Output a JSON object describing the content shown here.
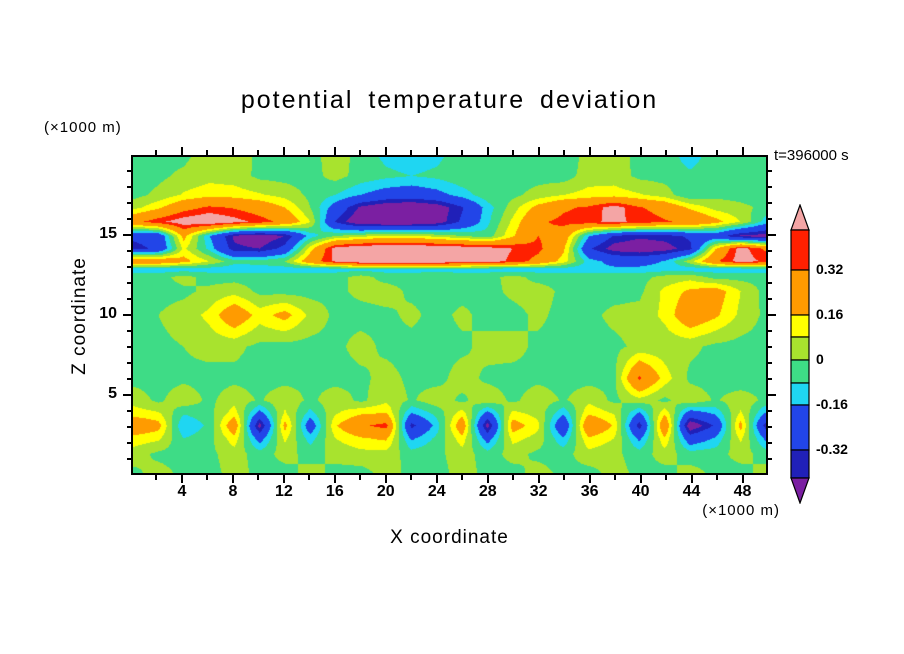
{
  "title": "potential temperature deviation",
  "time_label": "t=396000 s",
  "axis": {
    "x_label": "X coordinate",
    "z_label": "Z coordinate",
    "x_unit": "(×1000 m)",
    "z_unit": "(×1000 m)",
    "x_ticks": [
      4,
      8,
      12,
      16,
      20,
      24,
      28,
      32,
      36,
      40,
      44,
      48
    ],
    "z_ticks": [
      5,
      10,
      15
    ]
  },
  "colorbar": {
    "arrow_top_color": "#f4a5a5",
    "arrow_bottom_color": "#7b1fa2",
    "labels": [
      "0.32",
      "0.16",
      "0",
      "-0.16",
      "-0.32"
    ],
    "segments": [
      {
        "color": "#ff2000",
        "label": "0.32"
      },
      {
        "color": "#ff9b00",
        "label": "0.16"
      },
      {
        "color": "#ffff00"
      },
      {
        "color": "#a8e32e",
        "label": "0"
      },
      {
        "color": "#3edc86"
      },
      {
        "color": "#1fd6f2",
        "label": "-0.16"
      },
      {
        "color": "#2245e8",
        "label": "-0.32"
      },
      {
        "color": "#2020b8"
      }
    ]
  },
  "chart_data": {
    "type": "heatmap",
    "style": "filled-contour",
    "title": "potential temperature deviation",
    "xlabel": "X coordinate (×1000 m)",
    "ylabel": "Z coordinate (×1000 m)",
    "time_annotation": "t=396000 s",
    "x_range": [
      0,
      50
    ],
    "z_range": [
      0,
      20
    ],
    "x_ticks": [
      4,
      8,
      12,
      16,
      20,
      24,
      28,
      32,
      36,
      40,
      44,
      48
    ],
    "z_ticks": [
      5,
      10,
      15
    ],
    "colorbar_tick_labels": [
      "0.32",
      "0.16",
      "0",
      "-0.16",
      "-0.32"
    ],
    "levels": [
      -0.4,
      -0.32,
      -0.16,
      -0.08,
      0,
      0.08,
      0.16,
      0.32,
      0.4
    ],
    "colors": [
      "#7b1fa2",
      "#2020b8",
      "#2245e8",
      "#1fd6f2",
      "#3edc86",
      "#a8e32e",
      "#ffff00",
      "#ff9b00",
      "#ff2000",
      "#f4a5a5"
    ],
    "xs": [
      0,
      2,
      4,
      6,
      8,
      10,
      12,
      14,
      16,
      18,
      20,
      22,
      24,
      26,
      28,
      30,
      32,
      34,
      36,
      38,
      40,
      42,
      44,
      46,
      48,
      50
    ],
    "zs": [
      20,
      18.8,
      17.6,
      16.8,
      15.9,
      15.0,
      14.2,
      13.4,
      12.9,
      12.4,
      11.5,
      10,
      8,
      6,
      4.6,
      3.8,
      3.0,
      2.2,
      1.2,
      0
    ],
    "values": [
      [
        -0.03,
        -0.03,
        -0.02,
        0.05,
        0.05,
        -0.02,
        -0.03,
        -0.03,
        0.04,
        -0.03,
        -0.1,
        -0.13,
        -0.1,
        -0.03,
        -0.03,
        -0.03,
        -0.03,
        -0.08,
        0.05,
        0.05,
        -0.03,
        -0.03,
        -0.12,
        -0.03,
        -0.03,
        -0.03
      ],
      [
        -0.03,
        -0.02,
        0.02,
        0.05,
        0.04,
        -0.02,
        -0.03,
        -0.03,
        0.03,
        -0.03,
        -0.06,
        -0.08,
        -0.06,
        -0.02,
        -0.03,
        -0.03,
        -0.03,
        -0.04,
        0.04,
        0.04,
        -0.02,
        -0.03,
        -0.06,
        -0.03,
        -0.03,
        -0.03
      ],
      [
        -0.03,
        0.02,
        0.09,
        0.13,
        0.12,
        0.09,
        0.05,
        -0.02,
        -0.08,
        -0.16,
        -0.22,
        -0.24,
        -0.2,
        -0.12,
        -0.03,
        -0.02,
        0.03,
        0.08,
        0.11,
        0.12,
        0.09,
        0.04,
        -0.07,
        -0.02,
        -0.03,
        -0.03
      ],
      [
        0.05,
        0.14,
        0.27,
        0.34,
        0.31,
        0.25,
        0.16,
        0.0,
        -0.22,
        -0.42,
        -0.5,
        -0.52,
        -0.47,
        -0.33,
        -0.12,
        0.04,
        0.2,
        0.3,
        0.34,
        0.45,
        0.33,
        0.27,
        0.14,
        0.05,
        0.02,
        -0.02
      ],
      [
        0.28,
        0.38,
        0.46,
        0.5,
        0.44,
        0.37,
        0.28,
        0.08,
        -0.33,
        -0.5,
        -0.52,
        -0.52,
        -0.46,
        -0.3,
        -0.1,
        0.1,
        0.3,
        0.35,
        0.38,
        0.42,
        0.38,
        0.33,
        0.3,
        0.2,
        0.08,
        -0.12
      ],
      [
        -0.3,
        -0.28,
        0.2,
        -0.15,
        -0.42,
        -0.48,
        -0.4,
        -0.12,
        0.0,
        0.05,
        0.1,
        0.1,
        0.05,
        0.0,
        -0.05,
        0.15,
        0.32,
        0.25,
        -0.15,
        -0.33,
        -0.38,
        -0.36,
        -0.3,
        -0.25,
        -0.42,
        -0.45
      ],
      [
        -0.35,
        -0.3,
        0.1,
        -0.1,
        -0.38,
        -0.4,
        -0.28,
        0.12,
        0.45,
        0.5,
        0.52,
        0.52,
        0.5,
        0.48,
        0.45,
        0.4,
        0.35,
        0.18,
        -0.3,
        -0.45,
        -0.48,
        -0.45,
        -0.35,
        0.15,
        0.45,
        0.3
      ],
      [
        0.3,
        0.28,
        0.2,
        0.08,
        -0.05,
        -0.05,
        0.0,
        0.25,
        0.42,
        0.5,
        0.5,
        0.5,
        0.5,
        0.48,
        0.45,
        0.38,
        0.28,
        0.12,
        -0.12,
        -0.2,
        -0.22,
        -0.15,
        0.05,
        0.3,
        0.45,
        0.38
      ],
      [
        -0.12,
        -0.13,
        -0.12,
        -0.12,
        -0.13,
        -0.12,
        -0.12,
        -0.13,
        -0.12,
        -0.11,
        -0.12,
        -0.12,
        -0.11,
        -0.12,
        -0.12,
        -0.13,
        -0.12,
        -0.12,
        -0.13,
        -0.14,
        -0.13,
        -0.12,
        -0.13,
        -0.12,
        -0.13,
        -0.12
      ],
      [
        -0.03,
        -0.03,
        0.03,
        -0.03,
        -0.03,
        -0.03,
        -0.03,
        -0.03,
        -0.03,
        0.03,
        -0.03,
        -0.03,
        -0.03,
        -0.03,
        -0.03,
        0.03,
        -0.03,
        -0.03,
        -0.03,
        -0.03,
        -0.03,
        0.03,
        0.05,
        -0.03,
        -0.03,
        -0.03
      ],
      [
        -0.03,
        -0.03,
        -0.02,
        0.02,
        0.05,
        -0.02,
        -0.03,
        -0.03,
        -0.02,
        0.02,
        0.04,
        -0.02,
        -0.03,
        -0.03,
        -0.03,
        0.02,
        0.04,
        -0.02,
        -0.03,
        -0.03,
        -0.02,
        0.1,
        0.18,
        0.22,
        0.08,
        -0.03
      ],
      [
        -0.02,
        0.0,
        0.04,
        0.1,
        0.26,
        0.12,
        0.2,
        0.06,
        -0.02,
        -0.03,
        -0.02,
        0.02,
        -0.03,
        0.02,
        -0.03,
        -0.03,
        0.02,
        -0.03,
        -0.02,
        0.02,
        0.03,
        0.1,
        0.26,
        0.18,
        0.06,
        -0.02
      ],
      [
        -0.03,
        -0.02,
        0.0,
        0.03,
        0.02,
        -0.02,
        -0.03,
        -0.03,
        -0.02,
        0.03,
        -0.02,
        -0.03,
        -0.03,
        -0.02,
        0.03,
        0.03,
        -0.02,
        -0.03,
        -0.03,
        -0.02,
        0.02,
        0.03,
        0.02,
        -0.02,
        -0.03,
        -0.03
      ],
      [
        -0.03,
        -0.03,
        -0.02,
        -0.03,
        -0.02,
        -0.03,
        -0.03,
        -0.02,
        -0.03,
        -0.02,
        0.03,
        -0.02,
        -0.03,
        0.04,
        -0.02,
        -0.03,
        -0.02,
        -0.03,
        -0.03,
        -0.02,
        0.34,
        0.12,
        -0.02,
        -0.03,
        -0.06,
        -0.03
      ],
      [
        0.05,
        -0.02,
        0.06,
        -0.02,
        0.05,
        -0.01,
        0.06,
        -0.02,
        0.05,
        -0.02,
        0.06,
        -0.01,
        0.05,
        -0.02,
        0.06,
        -0.02,
        0.05,
        -0.01,
        0.06,
        -0.02,
        0.05,
        -0.02,
        0.06,
        -0.01,
        0.05,
        -0.02
      ],
      [
        0.12,
        0.09,
        -0.07,
        -0.03,
        0.12,
        -0.2,
        0.09,
        -0.11,
        0.07,
        0.14,
        0.16,
        -0.16,
        -0.05,
        0.12,
        -0.2,
        0.1,
        0.05,
        -0.14,
        0.14,
        0.07,
        -0.17,
        0.14,
        -0.22,
        -0.14,
        0.09,
        -0.17
      ],
      [
        0.26,
        0.2,
        -0.16,
        -0.06,
        0.26,
        -0.45,
        0.2,
        -0.25,
        0.15,
        0.3,
        0.36,
        -0.36,
        -0.12,
        0.26,
        -0.45,
        0.22,
        0.1,
        -0.3,
        0.3,
        0.15,
        -0.38,
        0.3,
        -0.5,
        -0.3,
        0.2,
        -0.38
      ],
      [
        0.13,
        0.1,
        -0.08,
        -0.03,
        0.13,
        -0.22,
        0.1,
        -0.12,
        0.08,
        0.15,
        0.18,
        -0.18,
        -0.06,
        0.13,
        -0.22,
        0.11,
        0.05,
        -0.15,
        0.15,
        0.08,
        -0.19,
        0.15,
        -0.25,
        -0.15,
        0.1,
        -0.19
      ],
      [
        0.04,
        -0.02,
        -0.03,
        -0.02,
        0.04,
        -0.04,
        0.03,
        -0.03,
        0.02,
        0.05,
        0.05,
        -0.04,
        -0.02,
        0.04,
        -0.04,
        0.03,
        -0.02,
        -0.03,
        0.05,
        0.02,
        -0.04,
        0.04,
        -0.04,
        -0.03,
        0.03,
        -0.03
      ],
      [
        -0.02,
        0.03,
        -0.02,
        -0.03,
        0.03,
        -0.02,
        -0.03,
        0.03,
        -0.02,
        -0.03,
        0.03,
        -0.02,
        -0.03,
        0.03,
        -0.02,
        -0.03,
        0.03,
        -0.02,
        -0.03,
        0.03,
        -0.02,
        -0.03,
        0.03,
        -0.02,
        -0.03,
        0.03
      ]
    ]
  }
}
